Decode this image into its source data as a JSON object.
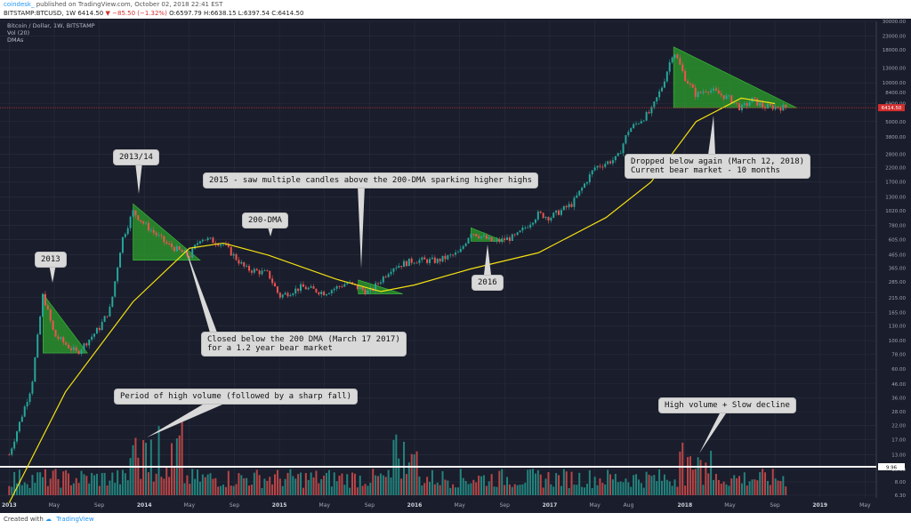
{
  "header": {
    "author": "coindesk_",
    "published": "published on TradingView.com, October 02, 2018 22:41 EST"
  },
  "symbol_bar": {
    "symbol": "BITSTAMP:BTCUSD, 1W",
    "last": "6414.50",
    "change": "−85.50 (−1.32%)",
    "ohlc": "O:6597.79 H:6638.15 L:6397.54 C:6414.50"
  },
  "legend": {
    "title": "Bitcoin / Dollar, 1W, BITSTAMP",
    "vol": "Vol (20)",
    "dmas": "DMAs"
  },
  "footer": {
    "created_with": "Created with",
    "brand": "TradingView"
  },
  "colors": {
    "background": "#1a1d2b",
    "grid": "#2a2e3e",
    "up": "#26a69a",
    "down": "#ef5350",
    "dma": "#f3e012",
    "highlight": "#2ca02c",
    "price_line": "#d32f2f"
  },
  "callouts": [
    {
      "id": "c2013",
      "text": "2013"
    },
    {
      "id": "c2013-14",
      "text": "2013/14"
    },
    {
      "id": "c2016",
      "text": "2016"
    },
    {
      "id": "c200dma",
      "text": "200-DMA"
    },
    {
      "id": "c2015",
      "text": "2015 - saw multiple candles above the 200-DMA sparking higher highs"
    },
    {
      "id": "cclosed",
      "text": "Closed below the 200 DMA (March 17 2017)\nfor a 1.2 year bear market"
    },
    {
      "id": "cdropped",
      "text": "Dropped below again (March 12, 2018)\nCurrent bear market - 10 months"
    },
    {
      "id": "cvolume",
      "text": "Period of high volume (followed by a sharp fall)"
    },
    {
      "id": "chighvol",
      "text": "High volume + Slow decline"
    }
  ],
  "chart_data": {
    "type": "candlestick",
    "interval": "1W",
    "y_scale": "log",
    "y_tick_labels": [
      "30000.00",
      "23000.00",
      "18000.00",
      "13000.00",
      "10000.00",
      "8400.00",
      "6900.00",
      "5000.00",
      "3800.00",
      "2800.00",
      "2200.00",
      "1700.00",
      "1300.00",
      "1020.00",
      "780.00",
      "605.00",
      "465.00",
      "365.00",
      "285.00",
      "215.00",
      "165.00",
      "130.00",
      "100.00",
      "78.00",
      "60.00",
      "46.00",
      "36.00",
      "28.00",
      "22.00",
      "17.00",
      "13.00",
      "10.00",
      "8.00",
      "6.30"
    ],
    "x_tick_labels": [
      "2013",
      "May",
      "Sep",
      "2014",
      "May",
      "Sep",
      "2015",
      "May",
      "Sep",
      "2016",
      "May",
      "Sep",
      "2017",
      "May",
      "Aug",
      "2018",
      "May",
      "Sep",
      "2019",
      "May"
    ],
    "last_price_label": "6414.50",
    "volume_line_label": "9.96",
    "price_path": [
      [
        "2013-01",
        13
      ],
      [
        "2013-03",
        45
      ],
      [
        "2013-04",
        230
      ],
      [
        "2013-05",
        110
      ],
      [
        "2013-07",
        80
      ],
      [
        "2013-09",
        125
      ],
      [
        "2013-10",
        180
      ],
      [
        "2013-11",
        600
      ],
      [
        "2013-12",
        1000
      ],
      [
        "2014-01",
        800
      ],
      [
        "2014-03",
        560
      ],
      [
        "2014-05",
        450
      ],
      [
        "2014-06",
        630
      ],
      [
        "2014-08",
        560
      ],
      [
        "2014-10",
        360
      ],
      [
        "2014-12",
        330
      ],
      [
        "2015-01",
        220
      ],
      [
        "2015-03",
        260
      ],
      [
        "2015-05",
        235
      ],
      [
        "2015-07",
        280
      ],
      [
        "2015-09",
        235
      ],
      [
        "2015-11",
        370
      ],
      [
        "2016-01",
        420
      ],
      [
        "2016-03",
        415
      ],
      [
        "2016-05",
        480
      ],
      [
        "2016-06",
        700
      ],
      [
        "2016-08",
        580
      ],
      [
        "2016-10",
        640
      ],
      [
        "2016-12",
        960
      ],
      [
        "2017-01",
        900
      ],
      [
        "2017-03",
        1150
      ],
      [
        "2017-05",
        2200
      ],
      [
        "2017-07",
        2600
      ],
      [
        "2017-08",
        4300
      ],
      [
        "2017-10",
        6000
      ],
      [
        "2017-11",
        9500
      ],
      [
        "2017-12",
        18000
      ],
      [
        "2018-01",
        11000
      ],
      [
        "2018-02",
        8000
      ],
      [
        "2018-03",
        9000
      ],
      [
        "2018-05",
        7500
      ],
      [
        "2018-06",
        6300
      ],
      [
        "2018-07",
        7400
      ],
      [
        "2018-08",
        6500
      ],
      [
        "2018-09",
        6500
      ],
      [
        "2018-10",
        6414.5
      ]
    ],
    "dma_200": [
      [
        "2013-01",
        5.5
      ],
      [
        "2013-06",
        40
      ],
      [
        "2013-12",
        200
      ],
      [
        "2014-05",
        520
      ],
      [
        "2014-08",
        570
      ],
      [
        "2014-12",
        460
      ],
      [
        "2015-06",
        300
      ],
      [
        "2015-10",
        240
      ],
      [
        "2016-01",
        270
      ],
      [
        "2016-06",
        360
      ],
      [
        "2016-12",
        480
      ],
      [
        "2017-06",
        900
      ],
      [
        "2017-10",
        1700
      ],
      [
        "2018-02",
        5000
      ],
      [
        "2018-06",
        7600
      ],
      [
        "2018-09",
        6900
      ]
    ],
    "highlight_triangles": [
      {
        "label": "2013",
        "peak": [
          "2013-04",
          230
        ],
        "end": [
          "2013-07",
          80
        ]
      },
      {
        "label": "2013/14",
        "peak": [
          "2013-12",
          1150
        ],
        "end": [
          "2014-05",
          420
        ]
      },
      {
        "label": "2015",
        "peak": [
          "2015-08",
          295
        ],
        "end": [
          "2015-11",
          230
        ]
      },
      {
        "label": "2016",
        "peak": [
          "2016-06",
          750
        ],
        "end": [
          "2016-08",
          590
        ]
      },
      {
        "label": "2018",
        "peak": [
          "2017-12",
          19000
        ],
        "end": [
          "2018-10",
          6400
        ]
      }
    ],
    "volume_threshold": 9.96
  }
}
